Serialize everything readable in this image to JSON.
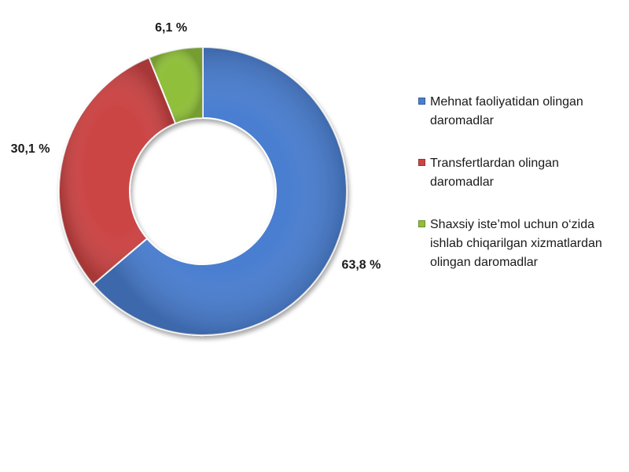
{
  "chart_data": {
    "type": "pie",
    "donut": true,
    "categories": [
      "Mehnat faoliyatidan olingan daromadlar",
      "Transfertlardan olingan daromadlar",
      "Shaxsiy iste’mol uchun o‘zida ishlab chiqarilgan xizmatlardan olingan daromadlar"
    ],
    "values": [
      63.8,
      30.1,
      6.1
    ],
    "value_labels": [
      "63,8 %",
      "30,1 %",
      "6,1 %"
    ],
    "colors": [
      "#4a7ed0",
      "#cc4444",
      "#8fbf3a"
    ],
    "title": "",
    "legend_position": "right"
  }
}
